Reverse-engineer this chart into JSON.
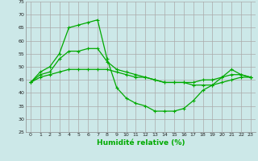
{
  "xlabel": "Humidité relative (%)",
  "bg_color": "#cce8e8",
  "grid_color": "#aaaaaa",
  "line_color": "#00aa00",
  "xlim": [
    -0.5,
    23.5
  ],
  "ylim": [
    25,
    75
  ],
  "xticks": [
    0,
    1,
    2,
    3,
    4,
    5,
    6,
    7,
    8,
    9,
    10,
    11,
    12,
    13,
    14,
    15,
    16,
    17,
    18,
    19,
    20,
    21,
    22,
    23
  ],
  "yticks": [
    25,
    30,
    35,
    40,
    45,
    50,
    55,
    60,
    65,
    70,
    75
  ],
  "hours": [
    0,
    1,
    2,
    3,
    4,
    5,
    6,
    7,
    8,
    9,
    10,
    11,
    12,
    13,
    14,
    15,
    16,
    17,
    18,
    19,
    20,
    21,
    22,
    23
  ],
  "max_line": [
    44,
    48,
    50,
    55,
    65,
    66,
    67,
    68,
    53,
    42,
    38,
    36,
    35,
    33,
    33,
    33,
    34,
    37,
    41,
    43,
    46,
    49,
    47,
    46
  ],
  "mean_line": [
    44,
    47,
    48,
    53,
    56,
    56,
    57,
    57,
    52,
    49,
    48,
    47,
    46,
    45,
    44,
    44,
    44,
    44,
    45,
    45,
    46,
    47,
    47,
    46
  ],
  "min_line": [
    44,
    46,
    47,
    48,
    49,
    49,
    49,
    49,
    49,
    48,
    47,
    46,
    46,
    45,
    44,
    44,
    44,
    43,
    43,
    43,
    44,
    45,
    46,
    46
  ]
}
